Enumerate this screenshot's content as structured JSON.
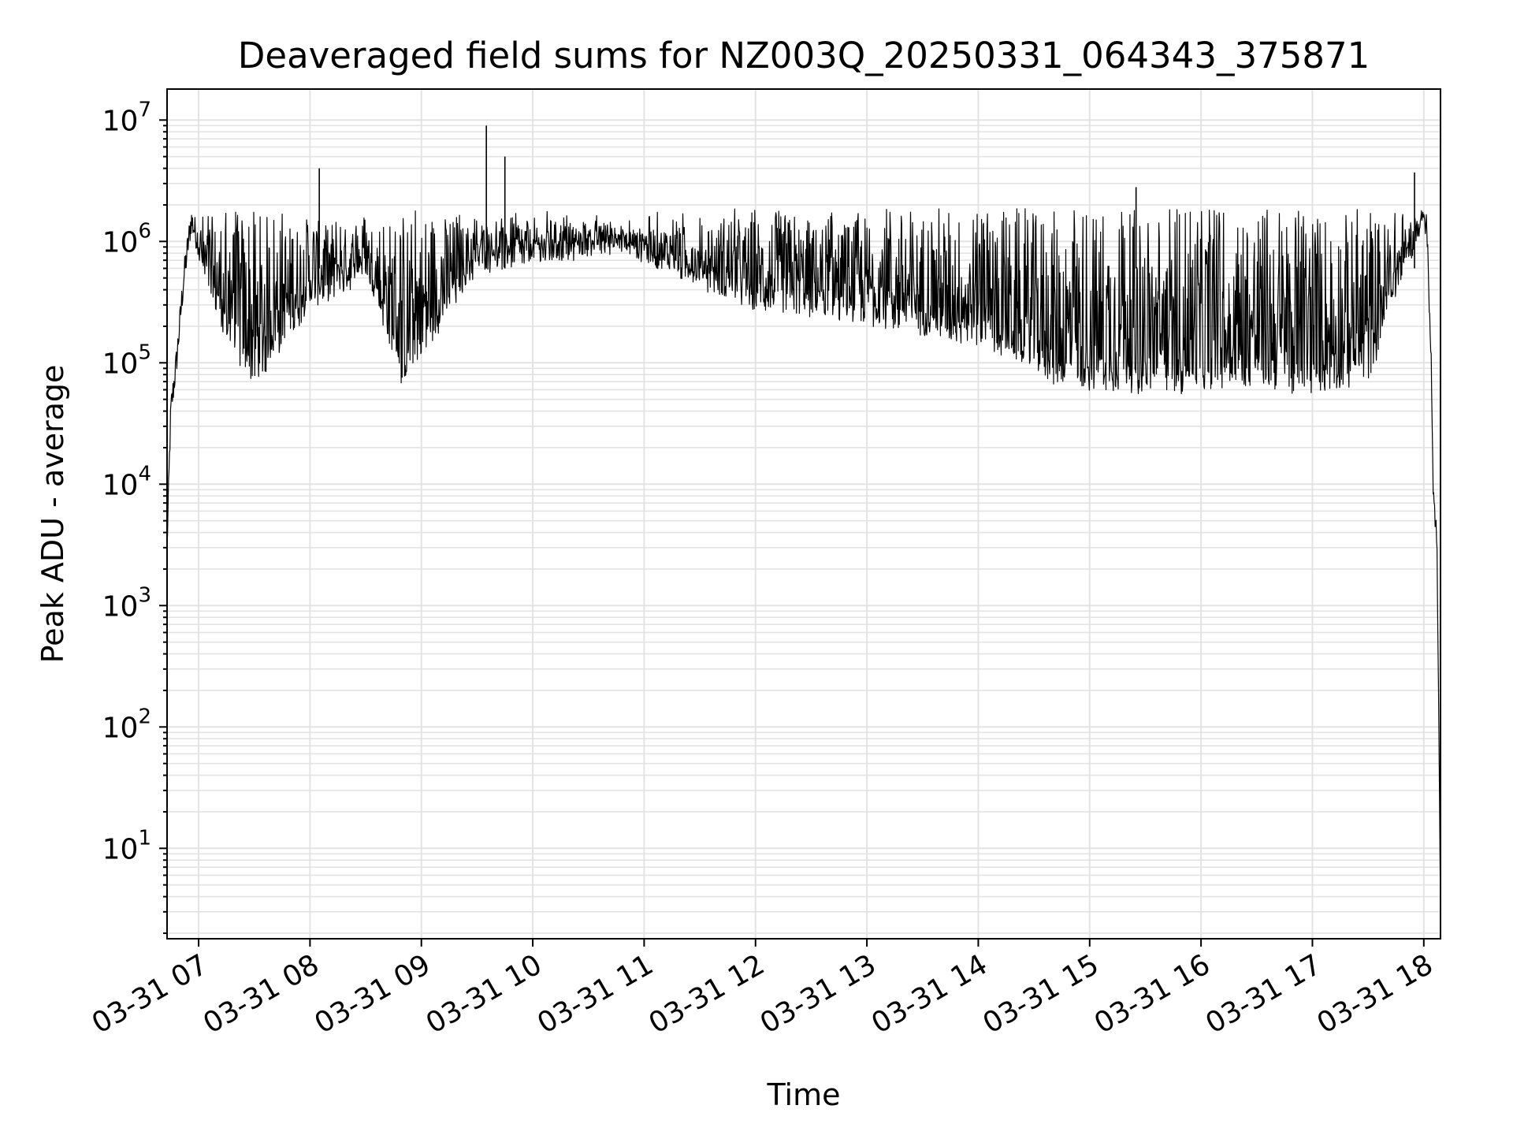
{
  "chart_data": {
    "type": "line",
    "title": "Deaveraged field sums for NZ003Q_20250331_064343_375871",
    "xlabel": "Time",
    "ylabel": "Peak ADU - average",
    "yscale": "log",
    "grid": true,
    "legend": "none",
    "line_color": "#000000",
    "xlim": [
      "2025-03-31 06:43",
      "2025-03-31 18:09"
    ],
    "ylim": [
      1.8,
      18000000
    ],
    "x_ticks": [
      "03-31 07",
      "03-31 08",
      "03-31 09",
      "03-31 10",
      "03-31 11",
      "03-31 12",
      "03-31 13",
      "03-31 14",
      "03-31 15",
      "03-31 16",
      "03-31 17",
      "03-31 18"
    ],
    "y_ticks": [
      {
        "value": 10,
        "base": "10",
        "exp": "1"
      },
      {
        "value": 100,
        "base": "10",
        "exp": "2"
      },
      {
        "value": 1000,
        "base": "10",
        "exp": "3"
      },
      {
        "value": 10000,
        "base": "10",
        "exp": "4"
      },
      {
        "value": 100000,
        "base": "10",
        "exp": "5"
      },
      {
        "value": 1000000,
        "base": "10",
        "exp": "6"
      },
      {
        "value": 10000000,
        "base": "10",
        "exp": "7"
      }
    ],
    "series": [
      {
        "x": [
          "2025-03-31 06:43",
          "2025-03-31 06:45",
          "2025-03-31 06:48",
          "2025-03-31 06:52",
          "2025-03-31 06:56",
          "2025-03-31 07:00",
          "2025-03-31 07:05",
          "2025-03-31 07:15",
          "2025-03-31 07:30",
          "2025-03-31 08:00",
          "2025-03-31 08:30",
          "2025-03-31 08:50",
          "2025-03-31 09:30",
          "2025-03-31 10:00",
          "2025-03-31 10:45",
          "2025-03-31 11:30",
          "2025-03-31 12:00",
          "2025-03-31 13:00",
          "2025-03-31 14:00",
          "2025-03-31 14:45",
          "2025-03-31 15:30",
          "2025-03-31 16:00",
          "2025-03-31 16:30",
          "2025-03-31 17:00",
          "2025-03-31 17:30",
          "2025-03-31 17:50",
          "2025-03-31 18:00",
          "2025-03-31 18:02",
          "2025-03-31 18:04",
          "2025-03-31 18:05",
          "2025-03-31 18:07",
          "2025-03-31 18:09"
        ],
        "y": [
          3000,
          40000,
          100000,
          500000,
          1500000,
          1000000,
          500000,
          200000,
          90000,
          400000,
          700000,
          90000,
          800000,
          900000,
          1200000,
          600000,
          400000,
          300000,
          200000,
          90000,
          80000,
          80000,
          90000,
          80000,
          100000,
          800000,
          2000000,
          1000000,
          100000,
          8000,
          4000,
          4
        ]
      }
    ],
    "annotations": [
      {
        "x": "2025-03-31 09:35",
        "y": 9000000
      },
      {
        "x": "2025-03-31 08:05",
        "y": 4000000
      },
      {
        "x": "2025-03-31 09:45",
        "y": 5000000
      },
      {
        "x": "2025-03-31 15:25",
        "y": 2800000
      },
      {
        "x": "2025-03-31 17:55",
        "y": 3700000
      }
    ]
  }
}
